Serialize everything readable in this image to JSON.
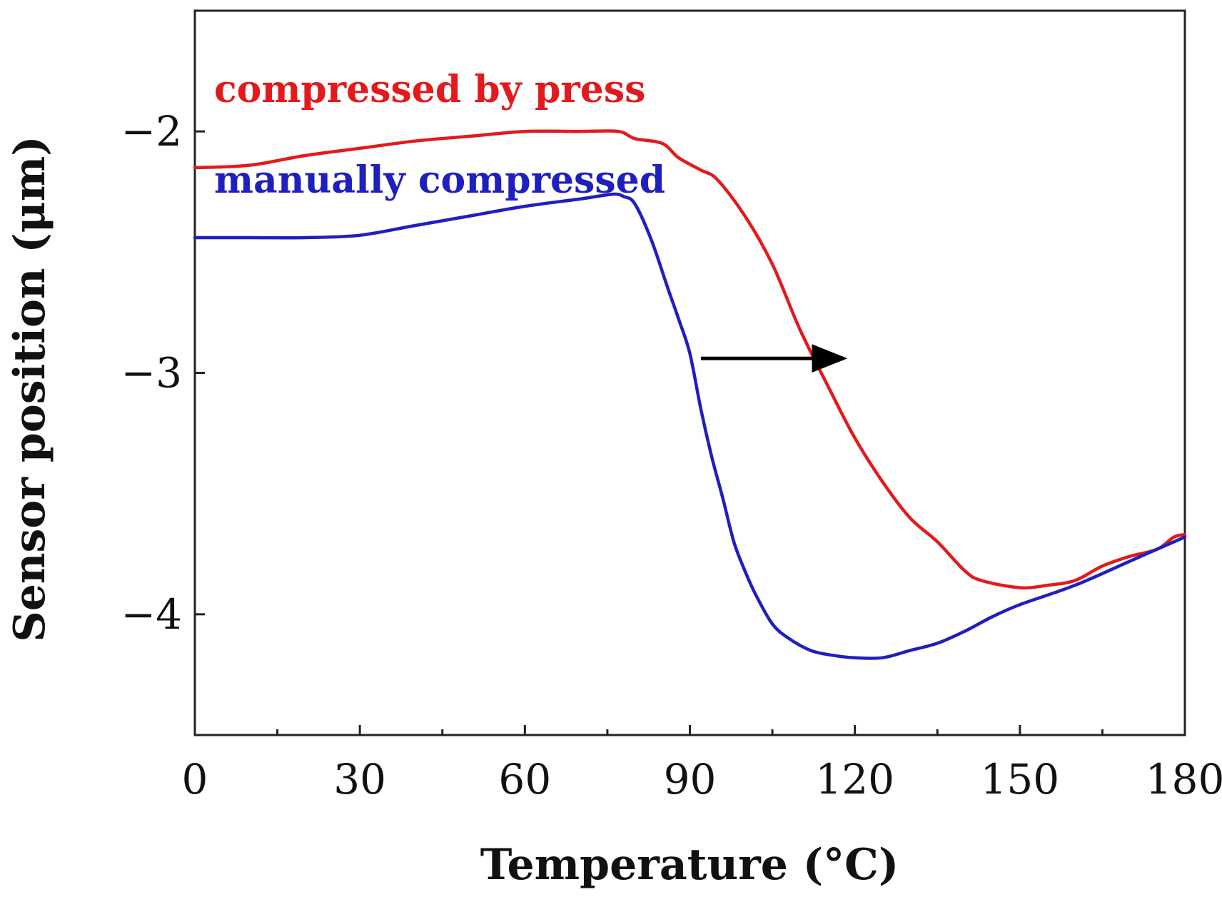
{
  "chart_data": {
    "type": "line",
    "title": "",
    "xlabel": "Temperature (°C)",
    "ylabel": "Sensor position (μm)",
    "xlim": [
      0,
      180
    ],
    "ylim": [
      -4.5,
      -1.5
    ],
    "xticks": [
      0,
      30,
      60,
      90,
      120,
      150,
      180
    ],
    "xtick_labels": [
      "0",
      "30",
      "60",
      "90",
      "120",
      "150",
      "180"
    ],
    "xminor_ticks": [
      15,
      45,
      75,
      105,
      135,
      165
    ],
    "yticks": [
      -2,
      -3,
      -4
    ],
    "ytick_labels": [
      "−2",
      "−3",
      "−4"
    ],
    "grid": false,
    "series": [
      {
        "name": "compressed by press",
        "color": "#e31a1c",
        "x": [
          0,
          10,
          20,
          30,
          40,
          50,
          60,
          70,
          77,
          80,
          85,
          88,
          92,
          95,
          100,
          105,
          110,
          115,
          120,
          125,
          130,
          135,
          140,
          143,
          150,
          155,
          160,
          165,
          170,
          175,
          178,
          180
        ],
        "y": [
          -2.15,
          -2.14,
          -2.1,
          -2.07,
          -2.04,
          -2.02,
          -2.0,
          -2.0,
          -2.0,
          -2.03,
          -2.05,
          -2.11,
          -2.16,
          -2.2,
          -2.35,
          -2.55,
          -2.82,
          -3.05,
          -3.27,
          -3.45,
          -3.6,
          -3.7,
          -3.82,
          -3.86,
          -3.89,
          -3.88,
          -3.86,
          -3.8,
          -3.76,
          -3.73,
          -3.68,
          -3.67
        ]
      },
      {
        "name": "manually compressed",
        "color": "#1f1fbf",
        "x": [
          0,
          10,
          20,
          30,
          40,
          50,
          60,
          70,
          76,
          78,
          80,
          83,
          86,
          88,
          90,
          92,
          94,
          96,
          98,
          100,
          102,
          105,
          108,
          112,
          116,
          120,
          125,
          130,
          135,
          140,
          145,
          150,
          160,
          170,
          180
        ],
        "y": [
          -2.44,
          -2.44,
          -2.44,
          -2.43,
          -2.39,
          -2.35,
          -2.31,
          -2.28,
          -2.26,
          -2.27,
          -2.3,
          -2.45,
          -2.65,
          -2.78,
          -2.92,
          -3.15,
          -3.35,
          -3.52,
          -3.7,
          -3.82,
          -3.92,
          -4.04,
          -4.1,
          -4.15,
          -4.17,
          -4.18,
          -4.18,
          -4.15,
          -4.12,
          -4.07,
          -4.01,
          -3.96,
          -3.88,
          -3.78,
          -3.68
        ]
      }
    ],
    "annotations": [
      {
        "type": "arrow",
        "from": [
          92,
          -2.94
        ],
        "to": [
          118,
          -2.94
        ],
        "color": "#000000"
      }
    ],
    "legend": "inline-top-left"
  }
}
